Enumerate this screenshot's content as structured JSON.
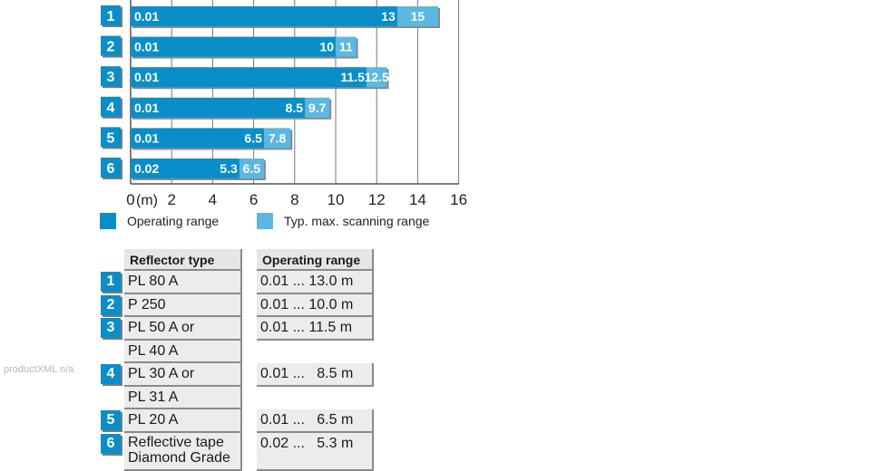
{
  "chart_data": {
    "type": "bar",
    "orientation": "horizontal",
    "stacked": true,
    "categories": [
      "1",
      "2",
      "3",
      "4",
      "5",
      "6"
    ],
    "series": [
      {
        "name": "Operating range",
        "start": [
          0.01,
          0.01,
          0.01,
          0.01,
          0.01,
          0.02
        ],
        "end": [
          13,
          10,
          11.5,
          8.5,
          6.5,
          5.3
        ],
        "color": "#0a8ec9"
      },
      {
        "name": "Typ. max. scanning range",
        "end": [
          15,
          11,
          12.5,
          9.7,
          7.8,
          6.5
        ],
        "color": "#5bb8e0"
      }
    ],
    "start_labels": [
      "0.01",
      "0.01",
      "0.01",
      "0.01",
      "0.01",
      "0.02"
    ],
    "op_labels": [
      "13",
      "10",
      "11.5",
      "8.5",
      "6.5",
      "5.3"
    ],
    "max_labels": [
      "15",
      "11",
      "12.5",
      "9.7",
      "7.8",
      "6.5"
    ],
    "xlim": [
      0,
      16
    ],
    "xticks": [
      0,
      2,
      4,
      6,
      8,
      10,
      12,
      14,
      16
    ],
    "xunit_label": "(m)",
    "grid": true,
    "legend_position": "bottom"
  },
  "legend": {
    "operating": "Operating range",
    "scanning": "Typ. max. scanning range"
  },
  "watermark": "productXML n/a",
  "table": {
    "header_type": "Reflector type",
    "header_range": "Operating range",
    "rows": [
      {
        "num": "1",
        "type": "PL 80 A",
        "range": "0.01 ... 13.0 m"
      },
      {
        "num": "2",
        "type": "P 250",
        "range": "0.01 ... 10.0 m"
      },
      {
        "num": "3",
        "type": "PL 50 A or",
        "range": "0.01 ... 11.5 m"
      },
      {
        "num": "",
        "type": "PL 40 A",
        "range": ""
      },
      {
        "num": "4",
        "type": "PL 30 A or",
        "range": "0.01 ...   8.5 m"
      },
      {
        "num": "",
        "type": "PL 31 A",
        "range": ""
      },
      {
        "num": "5",
        "type": "PL 20 A",
        "range": "0.01 ...   6.5 m"
      },
      {
        "num": "6",
        "type": "Reflective tape\nDiamond Grade",
        "range": "0.02 ...   5.3 m"
      }
    ]
  }
}
